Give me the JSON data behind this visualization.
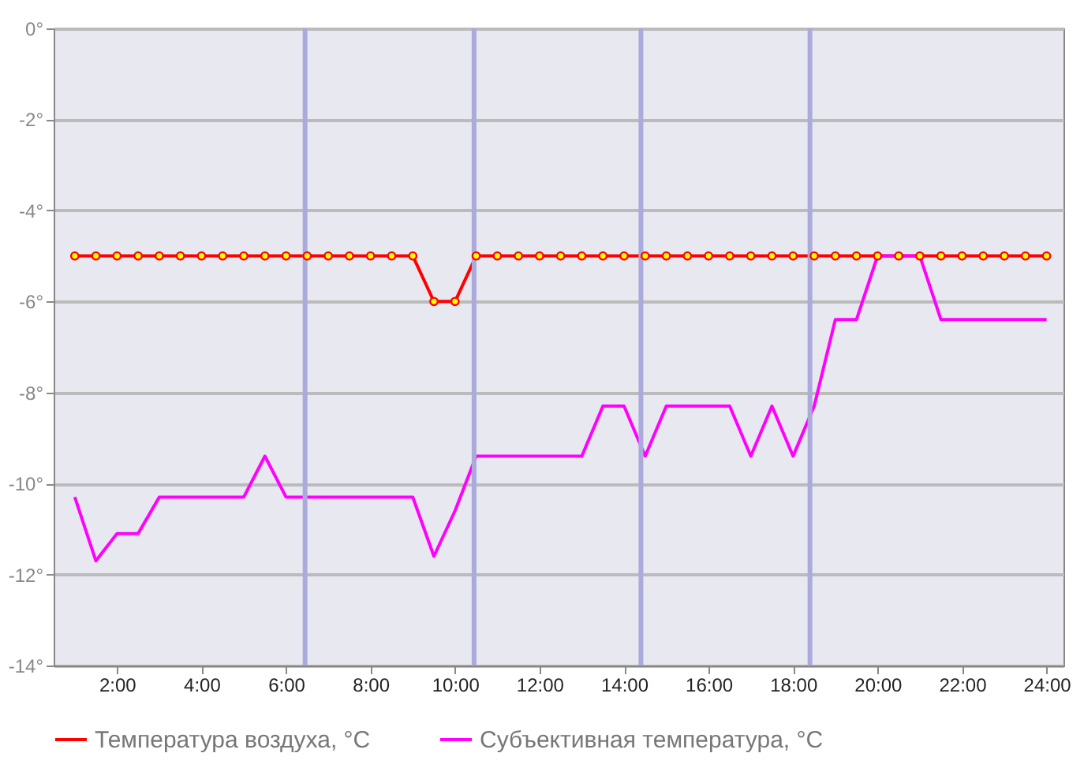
{
  "chart_data": {
    "type": "line",
    "x": [
      1,
      1.5,
      2,
      2.5,
      3,
      3.5,
      4,
      4.5,
      5,
      5.5,
      6,
      6.5,
      7,
      7.5,
      8,
      8.5,
      9,
      9.5,
      10,
      10.5,
      11,
      11.5,
      12,
      12.5,
      13,
      13.5,
      14,
      14.5,
      15,
      15.5,
      16,
      16.5,
      17,
      17.5,
      18,
      18.5,
      19,
      19.5,
      20,
      20.5,
      21,
      21.5,
      22,
      22.5,
      23,
      23.5,
      24
    ],
    "series": [
      {
        "name": "Температура воздуха, °C",
        "color": "#ff0000",
        "marker": "circle",
        "values": [
          -5,
          -5,
          -5,
          -5,
          -5,
          -5,
          -5,
          -5,
          -5,
          -5,
          -5,
          -5,
          -5,
          -5,
          -5,
          -5,
          -5,
          -6,
          -6,
          -5,
          -5,
          -5,
          -5,
          -5,
          -5,
          -5,
          -5,
          -5,
          -5,
          -5,
          -5,
          -5,
          -5,
          -5,
          -5,
          -5,
          -5,
          -5,
          -5,
          -5,
          -5,
          -5,
          -5,
          -5,
          -5,
          -5,
          -5
        ]
      },
      {
        "name": "Субъективная температура, °C",
        "color": "#ff00ff",
        "marker": "none",
        "values": [
          -10.3,
          -11.7,
          -11.1,
          -11.1,
          -10.3,
          -10.3,
          -10.3,
          -10.3,
          -10.3,
          -9.4,
          -10.3,
          -10.3,
          -10.3,
          -10.3,
          -10.3,
          -10.3,
          -10.3,
          -11.6,
          -10.6,
          -9.4,
          -9.4,
          -9.4,
          -9.4,
          -9.4,
          -9.4,
          -8.3,
          -8.3,
          -9.4,
          -8.3,
          -8.3,
          -8.3,
          -8.3,
          -9.4,
          -8.3,
          -9.4,
          -8.3,
          -6.4,
          -6.4,
          -5,
          -5,
          -5,
          -6.4,
          -6.4,
          -6.4,
          -6.4,
          -6.4,
          -6.4
        ]
      }
    ],
    "xlim": [
      0.5,
      24.4
    ],
    "xticks": [
      {
        "value": 2,
        "label": "2:00"
      },
      {
        "value": 4,
        "label": "4:00"
      },
      {
        "value": 6,
        "label": "6:00"
      },
      {
        "value": 8,
        "label": "8:00"
      },
      {
        "value": 10,
        "label": "10:00"
      },
      {
        "value": 12,
        "label": "12:00"
      },
      {
        "value": 14,
        "label": "14:00"
      },
      {
        "value": 16,
        "label": "16:00"
      },
      {
        "value": 18,
        "label": "18:00"
      },
      {
        "value": 20,
        "label": "20:00"
      },
      {
        "value": 22,
        "label": "22:00"
      },
      {
        "value": 24,
        "label": "24:00"
      }
    ],
    "ylim": [
      -14,
      0
    ],
    "yticks": [
      {
        "value": 0,
        "label": "0°"
      },
      {
        "value": -2,
        "label": "-2°"
      },
      {
        "value": -4,
        "label": "-4°"
      },
      {
        "value": -6,
        "label": "-6°"
      },
      {
        "value": -8,
        "label": "-8°"
      },
      {
        "value": -10,
        "label": "-10°"
      },
      {
        "value": -12,
        "label": "-12°"
      },
      {
        "value": -14,
        "label": "-14°"
      }
    ],
    "ref_lines": [
      {
        "axis": "x",
        "value": 6.45,
        "color": "#aaaadd"
      },
      {
        "axis": "x",
        "value": 10.45,
        "color": "#aaaadd"
      },
      {
        "axis": "x",
        "value": 14.4,
        "color": "#aaaadd"
      },
      {
        "axis": "x",
        "value": 18.4,
        "color": "#aaaadd"
      }
    ],
    "grid": "y",
    "legend": "bottom"
  }
}
